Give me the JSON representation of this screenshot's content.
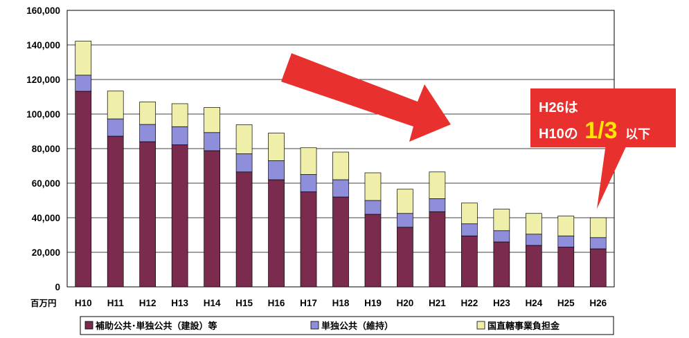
{
  "chart_data": {
    "type": "bar",
    "stacked": true,
    "unit_label": "百万円",
    "categories": [
      "H10",
      "H11",
      "H12",
      "H13",
      "H14",
      "H15",
      "H16",
      "H17",
      "H18",
      "H19",
      "H20",
      "H21",
      "H22",
      "H23",
      "H24",
      "H25",
      "H26"
    ],
    "series": [
      {
        "name": "補助公共･単独公共（建設）等",
        "color": "#7a2b4e",
        "values": [
          113200,
          87200,
          84000,
          82200,
          78800,
          66500,
          62000,
          55000,
          52000,
          42000,
          34500,
          43500,
          29500,
          26000,
          24000,
          23000,
          22000
        ]
      },
      {
        "name": "単独公共（維持）",
        "color": "#8e8edb",
        "values": [
          9300,
          10000,
          10000,
          10500,
          10500,
          10500,
          11000,
          10000,
          10000,
          8000,
          8000,
          7500,
          7000,
          6500,
          6500,
          6500,
          6500
        ]
      },
      {
        "name": "国直轄事業負担金",
        "color": "#f0efa9",
        "values": [
          19700,
          16100,
          13000,
          13300,
          14500,
          16800,
          16000,
          15500,
          16000,
          16000,
          14000,
          15500,
          12000,
          12500,
          12000,
          11500,
          11500
        ]
      }
    ],
    "ylim": [
      0,
      160000
    ],
    "yticks": [
      0,
      20000,
      40000,
      60000,
      80000,
      100000,
      120000,
      140000,
      160000
    ],
    "ytick_labels": [
      "0",
      "20,000",
      "40,000",
      "60,000",
      "80,000",
      "100,000",
      "120,000",
      "140,000",
      "160,000"
    ],
    "grid": true,
    "legend_position": "bottom"
  },
  "annotation": {
    "line1": "H26は",
    "line2_prefix": "H10の",
    "line2_fraction": "1/3",
    "line2_suffix": "以下",
    "background_color": "#e8312e",
    "highlight_color": "#ffe600"
  },
  "trend_arrow": {
    "color": "#e8312e",
    "direction": "down-right"
  }
}
